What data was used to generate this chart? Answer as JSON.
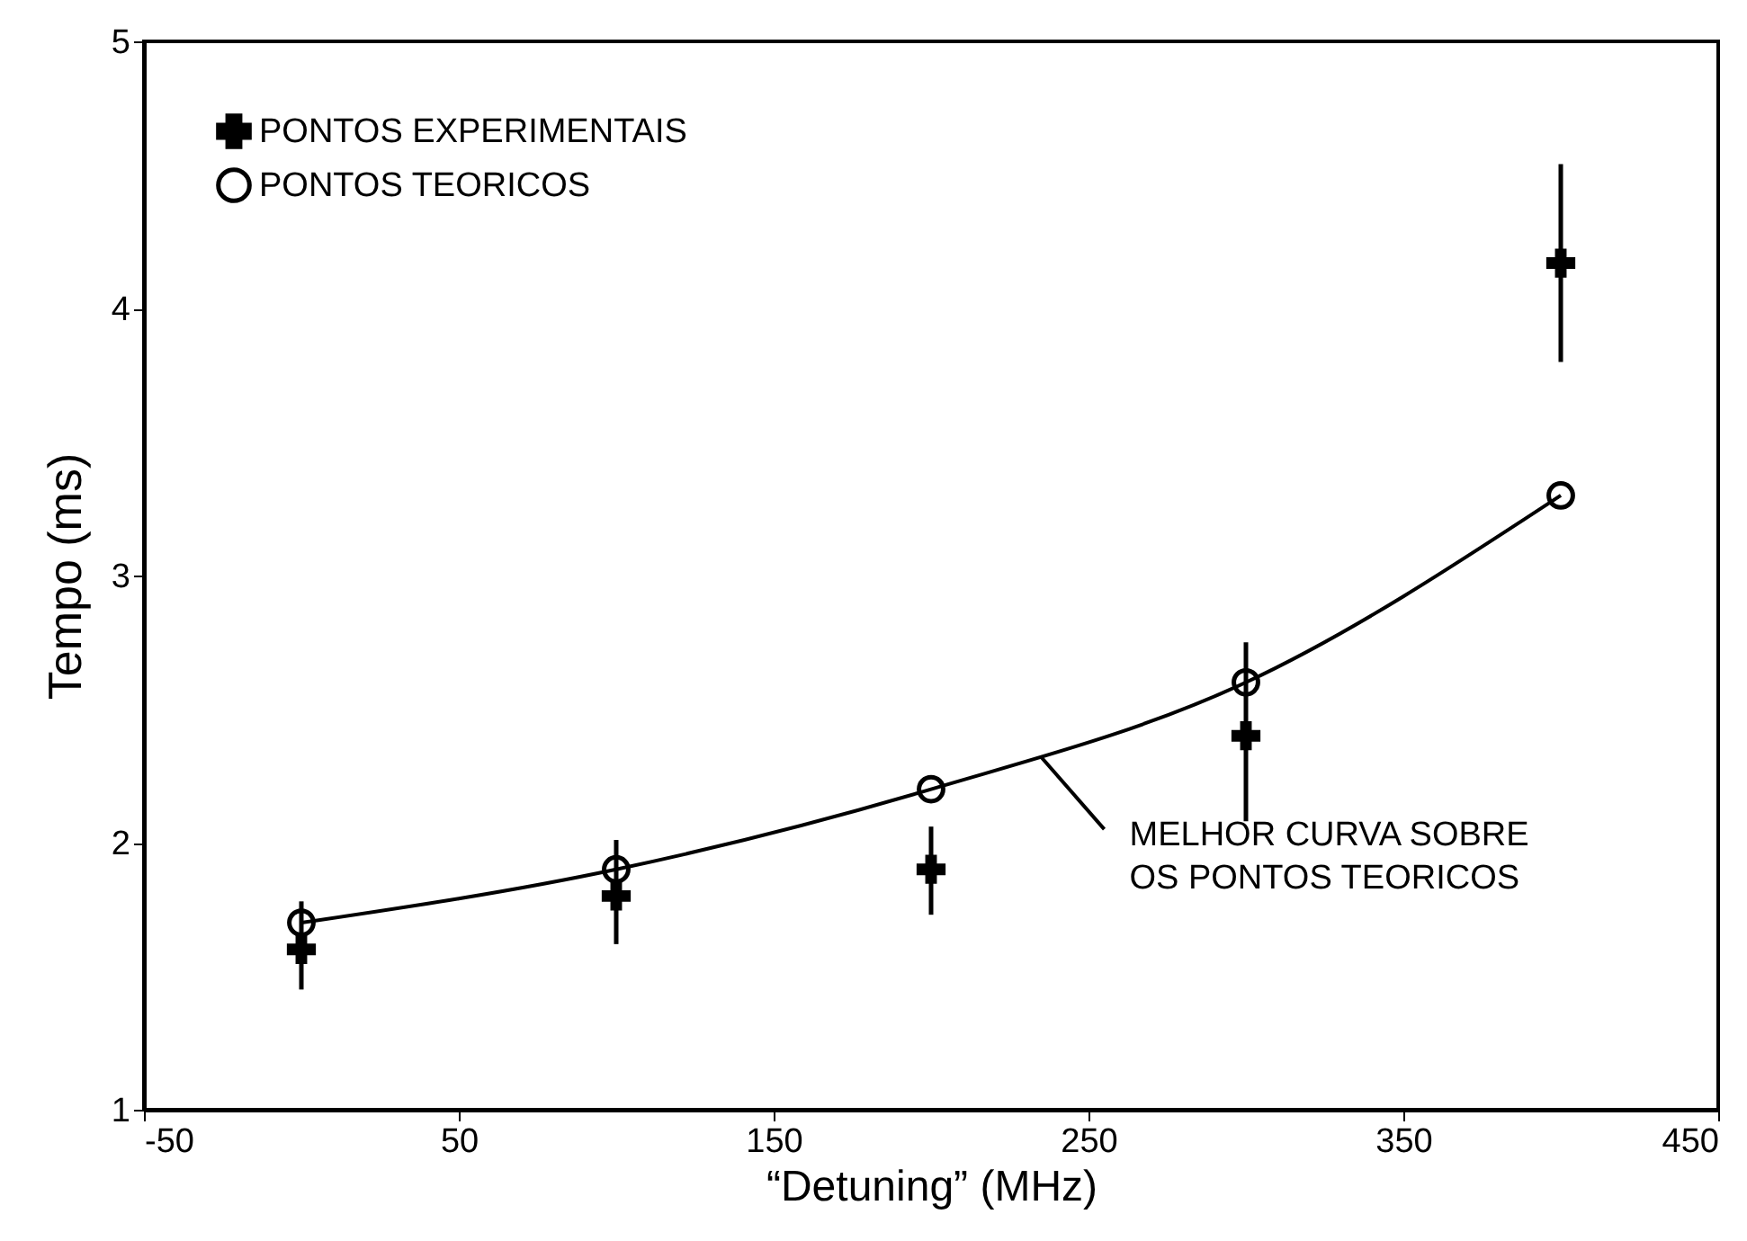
{
  "chart_data": {
    "type": "scatter",
    "xlabel": "“Detuning”   (MHz)",
    "ylabel": "Tempo   (ms)",
    "xlim": [
      -50,
      450
    ],
    "xticks": [
      -50,
      50,
      150,
      250,
      350,
      450
    ],
    "ylim": [
      1,
      5
    ],
    "yticks": [
      1,
      2,
      3,
      4,
      5
    ],
    "grid": false,
    "legend": "top left",
    "series": [
      {
        "name": "PONTOS EXPERIMENTAIS",
        "marker": "cross",
        "color": "#000000",
        "x": [
          0,
          100,
          200,
          300,
          400
        ],
        "values": [
          1.6,
          1.8,
          1.9,
          2.4,
          4.17
        ],
        "errors": [
          [
            1.45,
            1.78
          ],
          [
            1.62,
            2.01
          ],
          [
            1.73,
            2.06
          ],
          [
            2.08,
            2.75
          ],
          [
            3.8,
            4.54
          ]
        ]
      },
      {
        "name": "PONTOS TEORICOS",
        "marker": "circle",
        "color": "#000000",
        "x": [
          0,
          100,
          200,
          300,
          400
        ],
        "values": [
          1.7,
          1.9,
          2.2,
          2.6,
          3.3
        ]
      },
      {
        "type": "line",
        "marker": "none",
        "line_style": "solid",
        "color": "#000000",
        "x": [
          0,
          100,
          200,
          300,
          400
        ],
        "values": [
          1.7,
          1.9,
          2.2,
          2.6,
          3.3
        ]
      }
    ],
    "annotations": [
      {
        "text": "MELHOR CURVA SOBRE\nOS PONTOS TEORICOS",
        "x": 235,
        "y": 2.32
      }
    ]
  }
}
